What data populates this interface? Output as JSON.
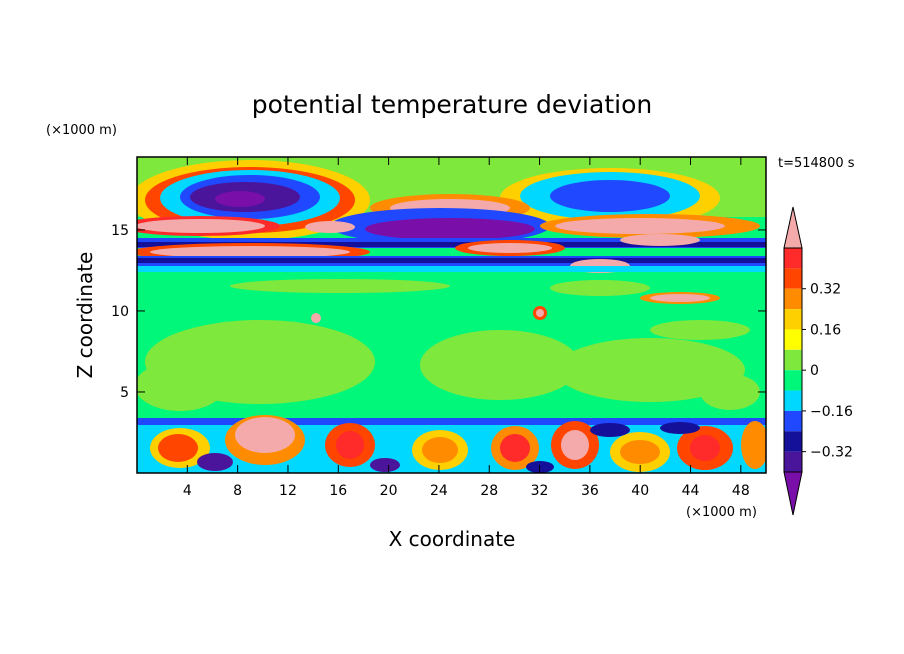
{
  "chart_data": {
    "type": "heatmap",
    "title": "potential temperature deviation",
    "xlabel": "X coordinate",
    "ylabel": "Z coordinate",
    "x_unit_label": "(×1000 m)",
    "y_unit_label": "(×1000 m)",
    "time_label": "t=514800 s",
    "xlim": [
      0,
      50
    ],
    "ylim": [
      0,
      19.5
    ],
    "x_ticks": [
      4,
      8,
      12,
      16,
      20,
      24,
      28,
      32,
      36,
      40,
      44,
      48
    ],
    "y_ticks": [
      5,
      10,
      15
    ],
    "colorbar": {
      "min": -0.48,
      "max": 0.48,
      "step": 0.08,
      "tick_values": [
        0.32,
        0.16,
        0,
        -0.16,
        -0.32
      ],
      "tick_labels": [
        "0.32",
        "0.16",
        "0",
        "−0.16",
        "−0.32"
      ],
      "colors": [
        "#7a0ea8",
        "#4a159a",
        "#14109a",
        "#1f48ff",
        "#00d8ff",
        "#00f77a",
        "#7fe83d",
        "#ffff00",
        "#ffd000",
        "#ff8c00",
        "#ff4500",
        "#ff2a2a",
        "#f4aaaa"
      ]
    },
    "structure": {
      "upper_shear_band_z": [
        13,
        18.5
      ],
      "quiet_mid_layer_z": [
        3.5,
        12.5
      ],
      "turbulent_boundary_layer_z": [
        0,
        3.5
      ]
    }
  }
}
